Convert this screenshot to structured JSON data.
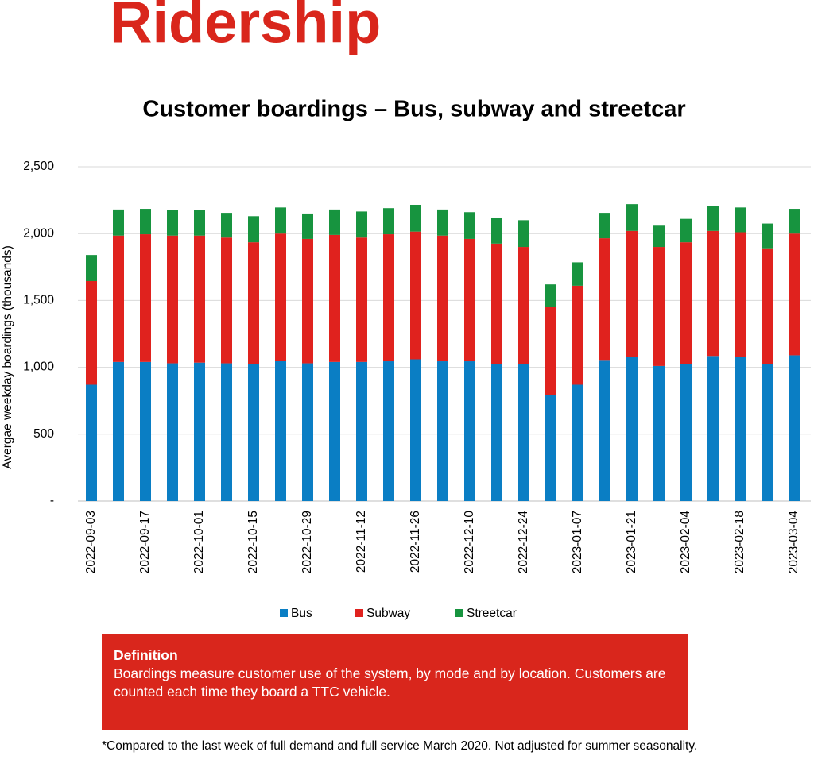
{
  "heading": "Ridership",
  "definition": {
    "title": "Definition",
    "text": "Boardings measure customer use of the system, by mode and by location. Customers are counted each time they board a TTC vehicle."
  },
  "footnote": "*Compared to the last week of full demand and full service March 2020. Not adjusted for summer seasonality.",
  "chart_data": {
    "type": "stacked_bar",
    "title": "Customer boardings – Bus, subway and streetcar",
    "y_label": "Avergae weekday boardings (thousands)",
    "categories": [
      "2022-09-03",
      null,
      "2022-09-17",
      null,
      "2022-10-01",
      null,
      "2022-10-15",
      null,
      "2022-10-29",
      null,
      "2022-11-12",
      null,
      "2022-11-26",
      null,
      "2022-12-10",
      null,
      "2022-12-24",
      null,
      "2023-01-07",
      null,
      "2023-01-21",
      null,
      "2023-02-04",
      null,
      "2023-02-18",
      null,
      "2023-03-04"
    ],
    "series": [
      {
        "name": "Bus",
        "color": "#0a7ec4",
        "values": [
          870,
          1040,
          1040,
          1030,
          1035,
          1030,
          1025,
          1050,
          1030,
          1040,
          1040,
          1045,
          1060,
          1045,
          1045,
          1025,
          1025,
          790,
          870,
          1055,
          1080,
          1010,
          1025,
          1085,
          1080,
          1025,
          1090
        ]
      },
      {
        "name": "Subway",
        "color": "#e0221e",
        "values": [
          775,
          945,
          955,
          955,
          950,
          940,
          910,
          950,
          930,
          950,
          930,
          950,
          955,
          940,
          915,
          900,
          875,
          660,
          740,
          910,
          940,
          890,
          910,
          935,
          930,
          865,
          910
        ]
      },
      {
        "name": "Streetcar",
        "color": "#17943f",
        "values": [
          195,
          195,
          190,
          190,
          190,
          185,
          195,
          195,
          190,
          190,
          195,
          195,
          200,
          195,
          200,
          195,
          200,
          170,
          175,
          190,
          200,
          165,
          175,
          185,
          185,
          185,
          185
        ]
      }
    ],
    "ylim": [
      0,
      2500
    ],
    "yticks": [
      {
        "value": 0,
        "label": "-"
      },
      500,
      {
        "value": 1000,
        "label": "1,000"
      },
      {
        "value": 1500,
        "label": "1,500"
      },
      {
        "value": 2000,
        "label": "2,000"
      },
      {
        "value": 2500,
        "label": "2,500"
      }
    ],
    "grid": true,
    "legend": "bottom"
  }
}
